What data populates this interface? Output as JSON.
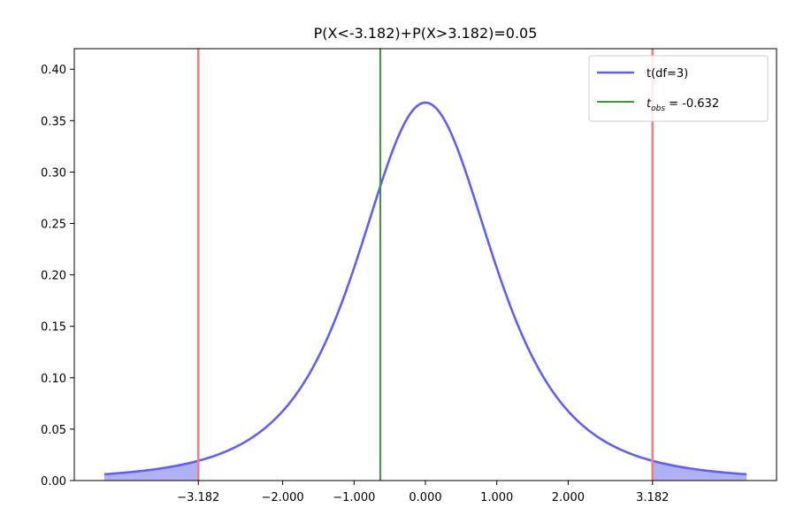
{
  "chart_data": {
    "type": "line",
    "title": "P(X<-3.182)+P(X>3.182)=0.05",
    "xlabel": "",
    "ylabel": "",
    "df": 3,
    "x_range": [
      -4.5,
      4.5
    ],
    "xlim": [
      -4.92,
      4.92
    ],
    "ylim": [
      0.0,
      0.42
    ],
    "x_ticks": [
      -3.182,
      -2.0,
      -1.0,
      0.0,
      1.0,
      2.0,
      3.182
    ],
    "x_tick_labels": [
      "−3.182",
      "−2.000",
      "−1.000",
      "0.000",
      "1.000",
      "2.000",
      "3.182"
    ],
    "y_ticks": [
      0.0,
      0.05,
      0.1,
      0.15,
      0.2,
      0.25,
      0.3,
      0.35,
      0.4
    ],
    "y_tick_labels": [
      "0.00",
      "0.05",
      "0.10",
      "0.15",
      "0.20",
      "0.25",
      "0.30",
      "0.35",
      "0.40"
    ],
    "critical_values": [
      -3.182,
      3.182
    ],
    "t_obs": -0.632,
    "series": [
      {
        "name": "t(df=3)",
        "color": "#6060f0"
      }
    ],
    "legend": {
      "placement": "top-right",
      "entries": [
        {
          "label": "t(df=3)",
          "color": "#6060f0"
        },
        {
          "label_main": "t",
          "label_sub": "obs",
          "label_rest": " = -0.632",
          "color": "#3a9a3a"
        }
      ]
    },
    "colors": {
      "curve": "#6060f0",
      "tail_fill": "#b0b0f4",
      "critical_line": "#f08080",
      "obs_line": "#3a9a3a"
    },
    "grid": false
  }
}
